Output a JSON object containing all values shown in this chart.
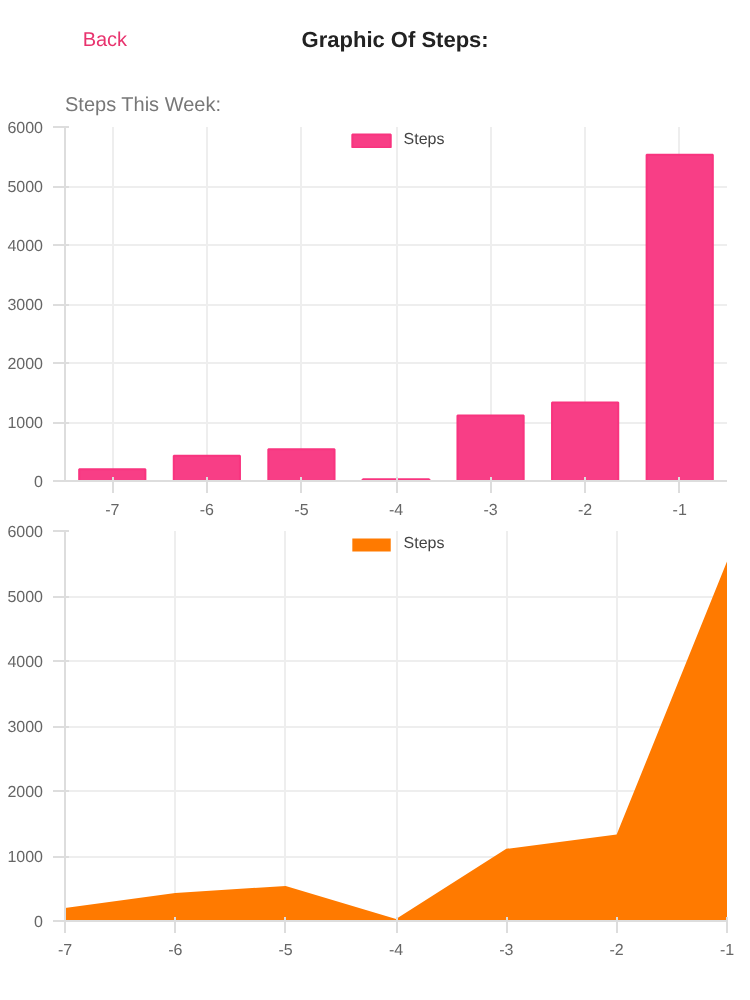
{
  "chart_data": [
    {
      "type": "other",
      "title": "Graphic Of Steps:",
      "annotations": [
        "Back"
      ]
    },
    {
      "type": "bar",
      "title": "Steps This Week:",
      "categories": [
        "-7",
        "-6",
        "-5",
        "-4",
        "-3",
        "-2",
        "-1"
      ],
      "series": [
        {
          "name": "Steps",
          "color": "#f8347f",
          "values": [
            200,
            430,
            540,
            30,
            1110,
            1330,
            5530
          ]
        }
      ],
      "ylim": [
        0,
        6000
      ],
      "yticks": [
        0,
        1000,
        2000,
        3000,
        4000,
        5000,
        6000
      ],
      "grid": true,
      "legend": "top"
    },
    {
      "type": "area",
      "categories": [
        "-7",
        "-6",
        "-5",
        "-4",
        "-3",
        "-2",
        "-1"
      ],
      "series": [
        {
          "name": "Steps",
          "color": "#ff7a00",
          "values": [
            200,
            430,
            540,
            30,
            1110,
            1330,
            5530
          ]
        }
      ],
      "ylim": [
        0,
        6000
      ],
      "yticks": [
        0,
        1000,
        2000,
        3000,
        4000,
        5000,
        6000
      ],
      "grid": true,
      "legend": "top"
    }
  ]
}
